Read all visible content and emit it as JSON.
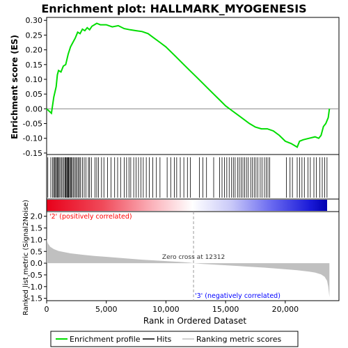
{
  "chart_data": {
    "title": "Enrichment plot: HALLMARK_MYOGENESIS",
    "x_axis": {
      "label": "Rank in Ordered Dataset",
      "range": [
        0,
        24500
      ],
      "ticks": [
        0,
        5000,
        10000,
        15000,
        20000
      ],
      "tick_labels": [
        "0",
        "5,000",
        "10,000",
        "15,000",
        "20,000"
      ]
    },
    "es_panel": {
      "type": "line",
      "ylabel": "Enrichment score (ES)",
      "ylim": [
        -0.155,
        0.31
      ],
      "yticks": [
        -0.15,
        -0.1,
        -0.05,
        0.0,
        0.05,
        0.1,
        0.15,
        0.2,
        0.25,
        0.3
      ],
      "ytick_labels": [
        "-0.15",
        "-0.10",
        "-0.05",
        "0.00",
        "0.05",
        "0.10",
        "0.15",
        "0.20",
        "0.25",
        "0.30"
      ],
      "line_color": "#00dd00",
      "zero_line": true,
      "points": [
        [
          0,
          0
        ],
        [
          400,
          -0.015
        ],
        [
          600,
          0.04
        ],
        [
          800,
          0.075
        ],
        [
          900,
          0.115
        ],
        [
          1000,
          0.13
        ],
        [
          1200,
          0.125
        ],
        [
          1400,
          0.145
        ],
        [
          1600,
          0.15
        ],
        [
          1800,
          0.185
        ],
        [
          2000,
          0.21
        ],
        [
          2200,
          0.225
        ],
        [
          2400,
          0.24
        ],
        [
          2600,
          0.26
        ],
        [
          2800,
          0.255
        ],
        [
          3000,
          0.27
        ],
        [
          3200,
          0.265
        ],
        [
          3400,
          0.275
        ],
        [
          3600,
          0.268
        ],
        [
          3800,
          0.28
        ],
        [
          4000,
          0.285
        ],
        [
          4200,
          0.29
        ],
        [
          4500,
          0.285
        ],
        [
          5000,
          0.285
        ],
        [
          5500,
          0.278
        ],
        [
          6000,
          0.282
        ],
        [
          6500,
          0.272
        ],
        [
          7000,
          0.268
        ],
        [
          7500,
          0.265
        ],
        [
          8000,
          0.262
        ],
        [
          8500,
          0.255
        ],
        [
          9000,
          0.24
        ],
        [
          9500,
          0.225
        ],
        [
          10000,
          0.21
        ],
        [
          10500,
          0.19
        ],
        [
          11000,
          0.17
        ],
        [
          11500,
          0.15
        ],
        [
          12000,
          0.13
        ],
        [
          12500,
          0.11
        ],
        [
          13000,
          0.09
        ],
        [
          13500,
          0.07
        ],
        [
          14000,
          0.05
        ],
        [
          14500,
          0.03
        ],
        [
          15000,
          0.01
        ],
        [
          15500,
          -0.005
        ],
        [
          16000,
          -0.02
        ],
        [
          16500,
          -0.035
        ],
        [
          17000,
          -0.05
        ],
        [
          17500,
          -0.062
        ],
        [
          18000,
          -0.068
        ],
        [
          18500,
          -0.068
        ],
        [
          19000,
          -0.075
        ],
        [
          19500,
          -0.09
        ],
        [
          20000,
          -0.11
        ],
        [
          20500,
          -0.118
        ],
        [
          21000,
          -0.13
        ],
        [
          21200,
          -0.11
        ],
        [
          21500,
          -0.105
        ],
        [
          22000,
          -0.1
        ],
        [
          22500,
          -0.095
        ],
        [
          22800,
          -0.1
        ],
        [
          23000,
          -0.09
        ],
        [
          23200,
          -0.06
        ],
        [
          23400,
          -0.05
        ],
        [
          23600,
          -0.03
        ],
        [
          23700,
          0.0
        ]
      ]
    },
    "hits_panel": {
      "label": "Hits",
      "positions": [
        100,
        350,
        500,
        600,
        650,
        750,
        820,
        900,
        980,
        1050,
        1150,
        1250,
        1350,
        1450,
        1550,
        1600,
        1680,
        1750,
        1800,
        1850,
        1920,
        2000,
        2060,
        2150,
        2250,
        2350,
        2450,
        2550,
        2650,
        2750,
        2850,
        3000,
        3150,
        3300,
        3500,
        3600,
        3750,
        4050,
        4200,
        4350,
        4600,
        4800,
        5100,
        5400,
        5700,
        5950,
        6200,
        6500,
        6700,
        6900,
        7050,
        7300,
        7500,
        7700,
        7900,
        8100,
        8350,
        8600,
        8900,
        9200,
        9500,
        10100,
        10400,
        10700,
        10900,
        11200,
        11500,
        11800,
        12050,
        12800,
        13100,
        13400,
        14000,
        14500,
        14700,
        14900,
        15100,
        15300,
        15500,
        15650,
        15800,
        16000,
        16150,
        16300,
        16450,
        16600,
        16750,
        16900,
        17100,
        17250,
        17400,
        17550,
        17700,
        17900,
        18050,
        18250,
        18400,
        18550,
        18700,
        20100,
        20400,
        20600,
        21000,
        21200,
        21400,
        21600,
        21900,
        22100,
        22400,
        22600,
        22900,
        23100,
        23300,
        23500
      ]
    },
    "metric_panel": {
      "type": "area",
      "ylabel": "Ranked list metric (Signal2Noise)",
      "ylim": [
        -1.6,
        2.2
      ],
      "yticks": [
        -1.5,
        -1.0,
        -0.5,
        0.0,
        0.5,
        1.0,
        1.5,
        2.0
      ],
      "ytick_labels": [
        "-1.5",
        "-1.0",
        "-0.5",
        "0.0",
        "0.5",
        "1.0",
        "1.5",
        "2.0"
      ],
      "fill_color": "#c0c0c0",
      "points": [
        [
          0,
          1.05
        ],
        [
          100,
          0.85
        ],
        [
          300,
          0.7
        ],
        [
          600,
          0.6
        ],
        [
          1000,
          0.52
        ],
        [
          2000,
          0.42
        ],
        [
          3000,
          0.36
        ],
        [
          4000,
          0.31
        ],
        [
          5000,
          0.27
        ],
        [
          6000,
          0.23
        ],
        [
          7000,
          0.19
        ],
        [
          8000,
          0.15
        ],
        [
          9000,
          0.12
        ],
        [
          10000,
          0.09
        ],
        [
          11000,
          0.06
        ],
        [
          12000,
          0.02
        ],
        [
          12312,
          0.0
        ],
        [
          13000,
          -0.03
        ],
        [
          14000,
          -0.06
        ],
        [
          15000,
          -0.09
        ],
        [
          16000,
          -0.12
        ],
        [
          17000,
          -0.15
        ],
        [
          18000,
          -0.18
        ],
        [
          19000,
          -0.22
        ],
        [
          20000,
          -0.26
        ],
        [
          21000,
          -0.3
        ],
        [
          22000,
          -0.36
        ],
        [
          22500,
          -0.4
        ],
        [
          23000,
          -0.48
        ],
        [
          23300,
          -0.58
        ],
        [
          23500,
          -0.75
        ],
        [
          23600,
          -1.0
        ],
        [
          23700,
          -1.45
        ]
      ],
      "zero_cross_rank": 12312,
      "annotations": {
        "zero_cross": "Zero cross at 12312",
        "positive": "'2' (positively correlated)",
        "negative": "'3' (negatively correlated)"
      },
      "positive_color": "#ff0000",
      "negative_color": "#0000ff"
    },
    "legend": [
      {
        "label": "Enrichment profile",
        "color": "#00dd00",
        "style": "line"
      },
      {
        "label": "Hits",
        "color": "#000000",
        "style": "line"
      },
      {
        "label": "Ranking metric scores",
        "color": "#c0c0c0",
        "style": "line"
      }
    ]
  }
}
